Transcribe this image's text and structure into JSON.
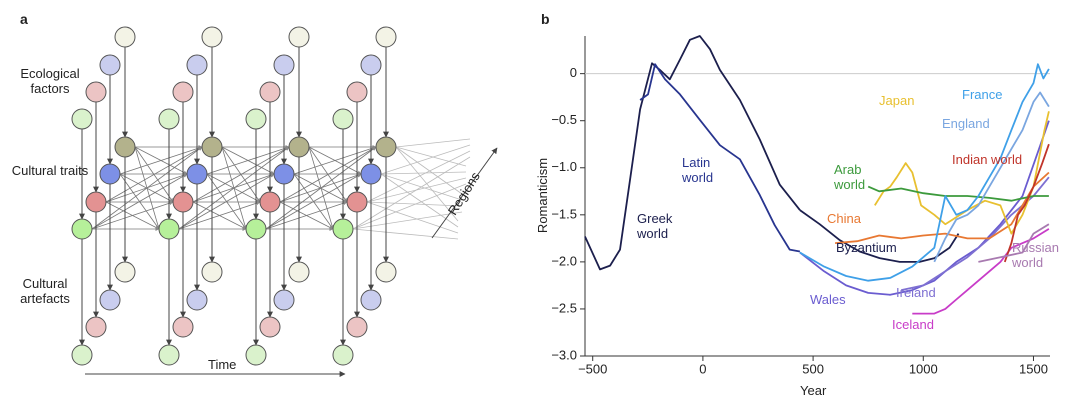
{
  "panel_labels": [
    "a",
    "b"
  ],
  "diagram": {
    "groups": [
      "Ecological factors",
      "Cultural traits",
      "Cultural artefacts"
    ],
    "time_label": "Time",
    "regions_label": "Regions"
  },
  "chart_data": {
    "type": "line",
    "x_label": "Year",
    "y_label": "Romanticism",
    "xlim": [
      -535,
      1575
    ],
    "ylim": [
      -3.0,
      0.4
    ],
    "xticks": [
      {
        "value": -500,
        "label": "−500"
      },
      0,
      500,
      1000,
      1500
    ],
    "yticks": [
      {
        "value": -3.0,
        "label": "−3.0"
      },
      {
        "value": -2.5,
        "label": "−2.5"
      },
      {
        "value": -2.0,
        "label": "−2.0"
      },
      {
        "value": -1.5,
        "label": "−1.5"
      },
      {
        "value": -1.0,
        "label": "−1.0"
      },
      {
        "value": -0.5,
        "label": "−0.5"
      },
      0
    ],
    "zero_line": true,
    "series": [
      {
        "name": "Greek world",
        "color": "#1c1f4d",
        "x": [
          -535,
          -467,
          -421,
          -376,
          -331,
          -285,
          -231,
          -195,
          -150,
          -104,
          -59,
          -14,
          32,
          77,
          168,
          258,
          349,
          440
        ],
        "values": [
          -1.73,
          -2.08,
          -2.04,
          -1.87,
          -1.13,
          -0.38,
          0.11,
          0.04,
          -0.06,
          0.15,
          0.36,
          0.4,
          0.26,
          0.04,
          -0.28,
          -0.7,
          -1.18,
          -1.45
        ]
      },
      {
        "name": "Latin world",
        "color": "#28358f",
        "x": [
          -285,
          -249,
          -217,
          -172,
          -104,
          -14,
          77,
          168,
          258,
          326,
          394,
          440
        ],
        "values": [
          -0.28,
          -0.22,
          0.1,
          -0.06,
          -0.22,
          -0.49,
          -0.76,
          -0.91,
          -1.29,
          -1.61,
          -1.87,
          -1.89
        ]
      },
      {
        "name": "Byzantium",
        "color": "#1c1f4d",
        "x": [
          440,
          530,
          621,
          711,
          802,
          893,
          983,
          1051,
          1119,
          1160
        ],
        "values": [
          -1.45,
          -1.6,
          -1.77,
          -1.89,
          -1.96,
          -2.0,
          -2.0,
          -1.96,
          -1.85,
          -1.7
        ]
      },
      {
        "name": "Wales",
        "color": "#6a5cd0",
        "x": [
          440,
          550,
          650,
          750,
          850,
          950,
          1050,
          1150,
          1250,
          1350,
          1450,
          1570
        ],
        "values": [
          -1.9,
          -2.1,
          -2.25,
          -2.33,
          -2.35,
          -2.3,
          -2.2,
          -2.0,
          -1.85,
          -1.6,
          -1.3,
          -0.5
        ]
      },
      {
        "name": "Ireland",
        "color": "#7e70d2",
        "x": [
          900,
          1000,
          1100,
          1200,
          1300,
          1400,
          1500,
          1570
        ],
        "values": [
          -2.3,
          -2.25,
          -2.1,
          -1.95,
          -1.75,
          -1.5,
          -1.3,
          -1.1
        ]
      },
      {
        "name": "Iceland",
        "color": "#c83cc8",
        "x": [
          950,
          1050,
          1100,
          1150,
          1200,
          1250,
          1300,
          1350,
          1400,
          1500,
          1570
        ],
        "values": [
          -2.55,
          -2.55,
          -2.5,
          -2.4,
          -2.3,
          -2.2,
          -2.1,
          -2.0,
          -1.85,
          -1.75,
          -1.65
        ]
      },
      {
        "name": "China",
        "color": "#e87832",
        "x": [
          600,
          700,
          800,
          900,
          1000,
          1100,
          1200,
          1300,
          1400,
          1500,
          1570
        ],
        "values": [
          -1.8,
          -1.78,
          -1.72,
          -1.75,
          -1.72,
          -1.7,
          -1.75,
          -1.75,
          -1.6,
          -1.2,
          -1.05
        ]
      },
      {
        "name": "Japan",
        "color": "#e8c030",
        "x": [
          780,
          820,
          850,
          880,
          920,
          950,
          990,
          1050,
          1100,
          1200,
          1280,
          1350,
          1400,
          1450,
          1500,
          1550,
          1570
        ],
        "values": [
          -1.4,
          -1.25,
          -1.2,
          -1.1,
          -0.95,
          -1.05,
          -1.4,
          -1.5,
          -1.6,
          -1.45,
          -1.35,
          -1.4,
          -1.7,
          -1.5,
          -1.2,
          -0.6,
          -0.4
        ]
      },
      {
        "name": "Arab world",
        "color": "#3c9a3c",
        "x": [
          750,
          800,
          900,
          1000,
          1100,
          1200,
          1300,
          1400,
          1500,
          1570
        ],
        "values": [
          -1.2,
          -1.25,
          -1.22,
          -1.27,
          -1.3,
          -1.3,
          -1.32,
          -1.35,
          -1.3,
          -1.3
        ]
      },
      {
        "name": "Indian world",
        "color": "#c0342a",
        "x": [
          1370,
          1400,
          1430,
          1460,
          1500,
          1540,
          1570
        ],
        "values": [
          -2.0,
          -1.8,
          -1.5,
          -1.4,
          -1.2,
          -0.95,
          -0.75
        ]
      },
      {
        "name": "France",
        "color": "#3fa0e8",
        "x": [
          440,
          550,
          650,
          750,
          850,
          950,
          1050,
          1100,
          1150,
          1200,
          1250,
          1300,
          1350,
          1400,
          1450,
          1500,
          1520,
          1545,
          1570
        ],
        "values": [
          -1.9,
          -2.05,
          -2.15,
          -2.2,
          -2.17,
          -2.05,
          -1.85,
          -1.3,
          -1.5,
          -1.45,
          -1.3,
          -1.1,
          -0.9,
          -0.6,
          -0.3,
          -0.1,
          0.1,
          -0.05,
          0.05
        ]
      },
      {
        "name": "England",
        "color": "#7aa6e0",
        "x": [
          1050,
          1100,
          1150,
          1200,
          1250,
          1300,
          1350,
          1400,
          1450,
          1500,
          1530,
          1570
        ],
        "values": [
          -2.0,
          -1.75,
          -1.55,
          -1.5,
          -1.4,
          -1.2,
          -1.0,
          -0.8,
          -0.6,
          -0.3,
          -0.2,
          -0.35
        ]
      },
      {
        "name": "Russian world",
        "color": "#a87ab0",
        "x": [
          1250,
          1350,
          1450,
          1500,
          1570
        ],
        "values": [
          -2.0,
          -1.95,
          -1.9,
          -1.7,
          -1.6
        ]
      }
    ]
  }
}
